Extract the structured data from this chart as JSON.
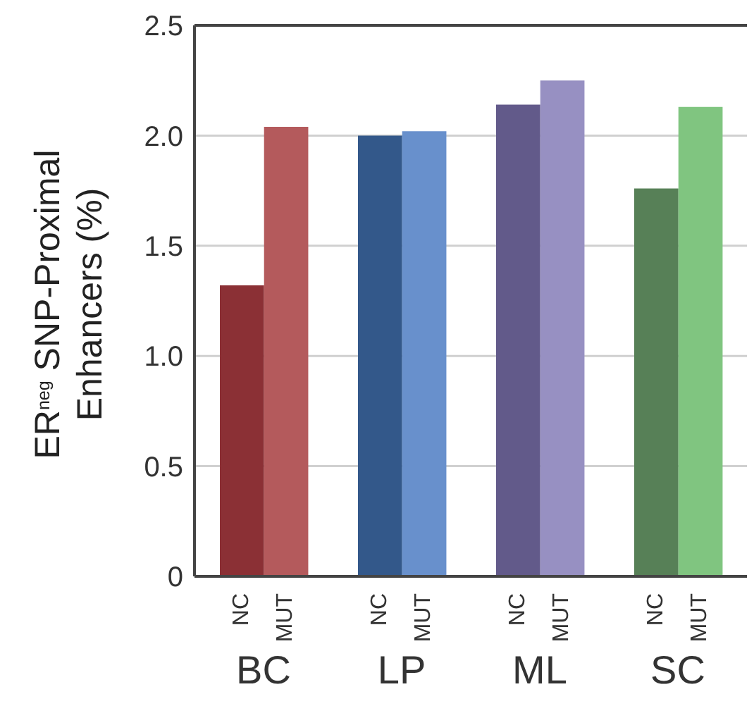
{
  "chart_data": {
    "type": "bar",
    "ylabel": "ER$^{neg}$ SNP-Proximal\nEnhancers (%)",
    "categories": [
      "BC",
      "LP",
      "ML",
      "SC"
    ],
    "series": [
      {
        "name": "NC",
        "colors": [
          "#8b3035",
          "#33588a",
          "#625a8a",
          "#578057"
        ],
        "values": [
          1.32,
          2.0,
          2.14,
          1.76
        ]
      },
      {
        "name": "MUT",
        "colors": [
          "#b45a5c",
          "#6890cc",
          "#9790c2",
          "#80c580"
        ],
        "values": [
          2.04,
          2.02,
          2.25,
          2.13
        ]
      }
    ],
    "ylim": [
      0,
      2.5
    ],
    "yticks": [
      0,
      {
        "value": 0.5,
        "label": "0.5"
      },
      {
        "value": 1,
        "label": "1.0"
      },
      {
        "value": 1.5,
        "label": "1.5"
      },
      {
        "value": 2,
        "label": "2.0"
      },
      {
        "value": 2.5,
        "label": "2.5"
      }
    ],
    "grid": "y"
  }
}
